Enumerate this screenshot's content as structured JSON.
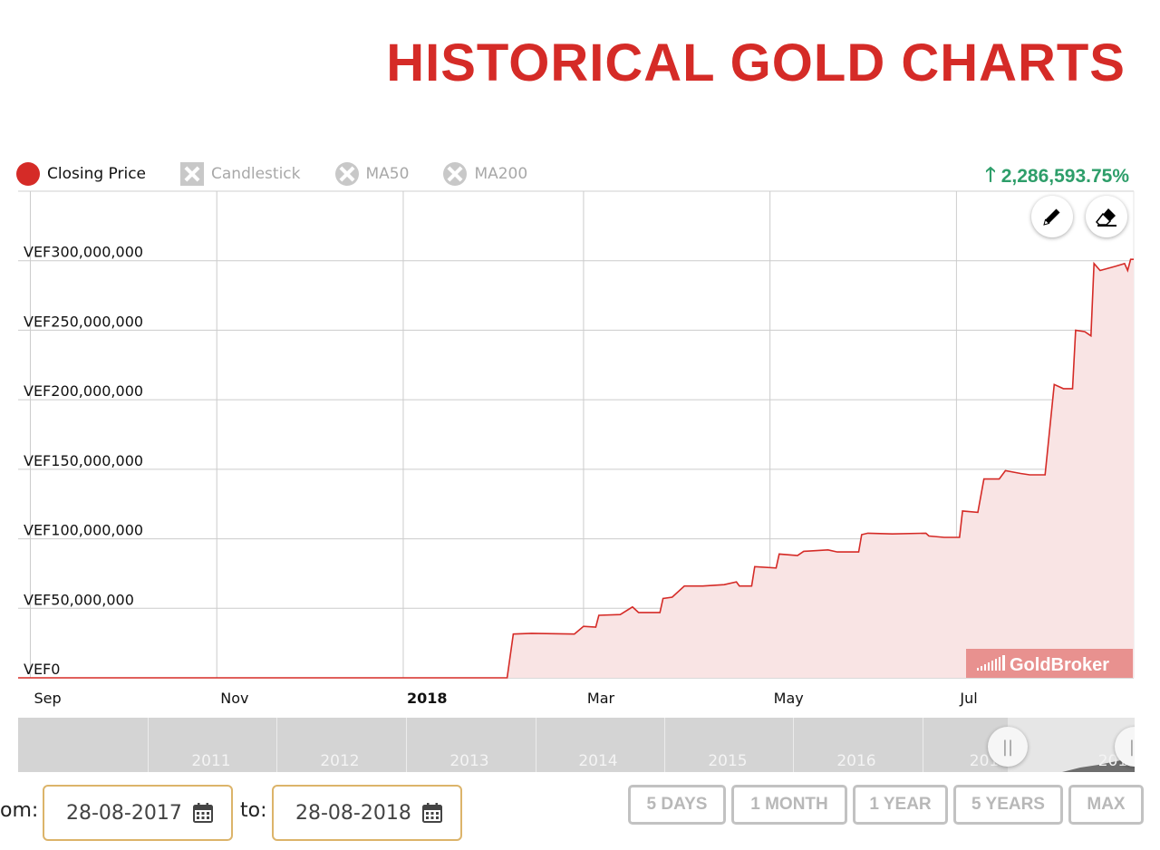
{
  "page": {
    "title": "HISTORICAL GOLD CHARTS",
    "colors": {
      "accent": "#d52b27",
      "positive": "#2e9e6a",
      "date_border": "#dcb46a"
    }
  },
  "legend": [
    {
      "label": "Closing Price",
      "active": true,
      "icon": "red-circle-icon"
    },
    {
      "label": "Candlestick",
      "active": false,
      "icon": "square-x-icon"
    },
    {
      "label": "MA50",
      "active": false,
      "icon": "circle-x-icon"
    },
    {
      "label": "MA200",
      "active": false,
      "icon": "circle-x-icon"
    }
  ],
  "performance": {
    "arrow_icon": "arrow-up-icon",
    "arrow": "🡑",
    "value": "2,286,593.75%"
  },
  "tools": [
    {
      "name": "pencil-icon"
    },
    {
      "name": "eraser-icon"
    }
  ],
  "watermark": "GoldBroker",
  "chart_data": {
    "type": "area",
    "series": [
      {
        "name": "Closing Price",
        "color": "#d52b27"
      }
    ],
    "x_ticks": [
      "Sep",
      "Nov",
      "2018",
      "Mar",
      "May",
      "Jul"
    ],
    "y_ticks": [
      "VEF0",
      "VEF50,000,000",
      "VEF100,000,000",
      "VEF150,000,000",
      "VEF200,000,000",
      "VEF250,000,000",
      "VEF300,000,000"
    ],
    "ylim": [
      0,
      350000000
    ],
    "x_range": [
      "2017-08-28",
      "2018-08-28"
    ],
    "grid": true,
    "points": [
      [
        "2017-08-28",
        0
      ],
      [
        "2018-02-04",
        0
      ],
      [
        "2018-02-06",
        31500000
      ],
      [
        "2018-02-12",
        32000000
      ],
      [
        "2018-02-26",
        31500000
      ],
      [
        "2018-03-01",
        37000000
      ],
      [
        "2018-03-05",
        36500000
      ],
      [
        "2018-03-06",
        45000000
      ],
      [
        "2018-03-13",
        45500000
      ],
      [
        "2018-03-17",
        51000000
      ],
      [
        "2018-03-19",
        47000000
      ],
      [
        "2018-03-26",
        47000000
      ],
      [
        "2018-03-27",
        57000000
      ],
      [
        "2018-03-30",
        58000000
      ],
      [
        "2018-04-03",
        66000000
      ],
      [
        "2018-04-09",
        66000000
      ],
      [
        "2018-04-16",
        67000000
      ],
      [
        "2018-04-20",
        69000000
      ],
      [
        "2018-04-21",
        66000000
      ],
      [
        "2018-04-25",
        66000000
      ],
      [
        "2018-04-26",
        80000000
      ],
      [
        "2018-05-03",
        79000000
      ],
      [
        "2018-05-04",
        89000000
      ],
      [
        "2018-05-10",
        88000000
      ],
      [
        "2018-05-12",
        91000000
      ],
      [
        "2018-05-20",
        92000000
      ],
      [
        "2018-05-23",
        90500000
      ],
      [
        "2018-05-30",
        90500000
      ],
      [
        "2018-05-31",
        103000000
      ],
      [
        "2018-06-02",
        104000000
      ],
      [
        "2018-06-10",
        103500000
      ],
      [
        "2018-06-21",
        104000000
      ],
      [
        "2018-06-22",
        102000000
      ],
      [
        "2018-06-27",
        101000000
      ],
      [
        "2018-07-02",
        101000000
      ],
      [
        "2018-07-03",
        120000000
      ],
      [
        "2018-07-08",
        119000000
      ],
      [
        "2018-07-10",
        143000000
      ],
      [
        "2018-07-15",
        143000000
      ],
      [
        "2018-07-17",
        149000000
      ],
      [
        "2018-07-22",
        147000000
      ],
      [
        "2018-07-25",
        146000000
      ],
      [
        "2018-07-30",
        146000000
      ],
      [
        "2018-08-02",
        211000000
      ],
      [
        "2018-08-05",
        208000000
      ],
      [
        "2018-08-08",
        208000000
      ],
      [
        "2018-08-09",
        250000000
      ],
      [
        "2018-08-12",
        249000000
      ],
      [
        "2018-08-14",
        246000000
      ],
      [
        "2018-08-15",
        298000000
      ],
      [
        "2018-08-17",
        293000000
      ],
      [
        "2018-08-22",
        296000000
      ],
      [
        "2018-08-25",
        298000000
      ],
      [
        "2018-08-26",
        293000000
      ],
      [
        "2018-08-27",
        301000000
      ],
      [
        "2018-08-28",
        301000000
      ]
    ]
  },
  "navigator": {
    "years": [
      "2011",
      "2012",
      "2013",
      "2014",
      "2015",
      "2016",
      "201",
      "201"
    ],
    "handle_glyph": "||"
  },
  "date_range": {
    "from_label": "om:",
    "from_value": "28-08-2017",
    "to_label": "to:",
    "to_value": "28-08-2018",
    "calendar_icon": "calendar-icon"
  },
  "range_buttons": [
    "5 DAYS",
    "1 MONTH",
    "1 YEAR",
    "5 YEARS",
    "MAX"
  ]
}
